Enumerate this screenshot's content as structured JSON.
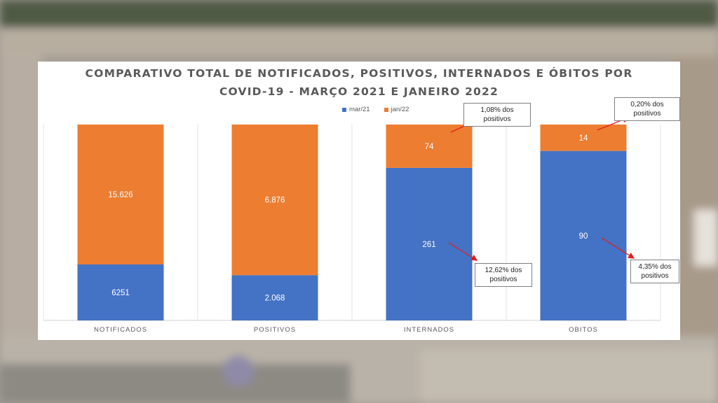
{
  "chart_data": {
    "type": "bar",
    "stacked": true,
    "title_lines": [
      "COMPARATIVO TOTAL DE NOTIFICADOS, POSITIVOS, INTERNADOS E ÓBITOS  POR",
      "COVID-19 - MARÇO 2021 E JANEIRO 2022"
    ],
    "categories": [
      "NOTIFICADOS",
      "POSITIVOS",
      "INTERNADOS",
      "OBITOS"
    ],
    "series": [
      {
        "name": "mar/21",
        "color": "#4472c4",
        "values": [
          6251,
          2068,
          261,
          90
        ],
        "labels": [
          "6251",
          "2.068",
          "261",
          "90"
        ]
      },
      {
        "name": "jan/22",
        "color": "#ed7d31",
        "values": [
          15626,
          6876,
          74,
          14
        ],
        "labels": [
          "15.626",
          "6.876",
          "74",
          "14"
        ]
      }
    ],
    "legend_position": "top",
    "annotations": [
      {
        "category": "INTERNADOS",
        "series": "jan/22",
        "text": "1,08% dos positivos"
      },
      {
        "category": "INTERNADOS",
        "series": "mar/21",
        "text": "12,62% dos positivos"
      },
      {
        "category": "OBITOS",
        "series": "jan/22",
        "text": "0,20% dos positivos"
      },
      {
        "category": "OBITOS",
        "series": "mar/21",
        "text": "4,35% dos positivos"
      }
    ],
    "bars_normalized_to_100_percent": true,
    "grid": false
  }
}
